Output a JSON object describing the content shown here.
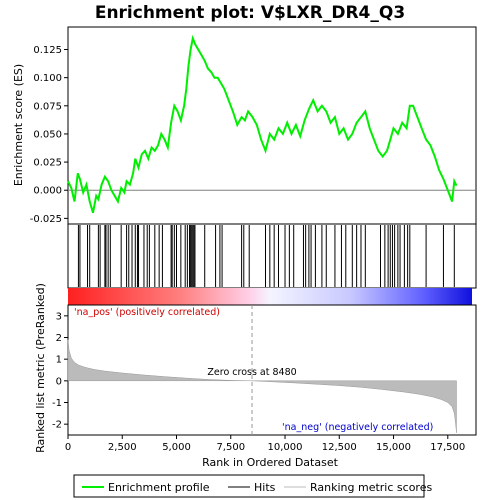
{
  "chart_data": {
    "type": "line",
    "title": "Enrichment plot: V$LXR_DR4_Q3",
    "es_panel": {
      "ylabel": "Enrichment score (ES)",
      "ylim": [
        -0.03,
        0.145
      ],
      "yticks": [
        -0.025,
        0.0,
        0.025,
        0.05,
        0.075,
        0.1,
        0.125
      ],
      "ytick_labels": [
        "-0.025",
        "0.000",
        "0.025",
        "0.050",
        "0.075",
        "0.100",
        "0.125"
      ],
      "series": [
        {
          "name": "Enrichment profile",
          "color": "#00ee00",
          "x": [
            0,
            150,
            300,
            450,
            550,
            700,
            850,
            1000,
            1150,
            1300,
            1400,
            1550,
            1700,
            1850,
            2000,
            2150,
            2300,
            2450,
            2600,
            2700,
            2850,
            3000,
            3100,
            3250,
            3400,
            3550,
            3700,
            3850,
            4000,
            4150,
            4300,
            4450,
            4600,
            4750,
            4900,
            5050,
            5200,
            5350,
            5450,
            5550,
            5650,
            5750,
            5850,
            6000,
            6150,
            6300,
            6450,
            6600,
            6750,
            6900,
            7050,
            7200,
            7400,
            7600,
            7800,
            8000,
            8150,
            8300,
            8500,
            8700,
            8900,
            9100,
            9300,
            9500,
            9700,
            9900,
            10100,
            10300,
            10500,
            10700,
            10900,
            11100,
            11300,
            11500,
            11700,
            11900,
            12100,
            12300,
            12500,
            12700,
            12900,
            13100,
            13300,
            13500,
            13700,
            13900,
            14100,
            14300,
            14500,
            14700,
            14850,
            15000,
            15200,
            15400,
            15600,
            15750,
            15900,
            16100,
            16300,
            16500,
            16700,
            16900,
            17100,
            17300,
            17500,
            17700,
            17800,
            17900
          ],
          "y": [
            0.008,
            0.002,
            -0.01,
            0.015,
            0.01,
            -0.002,
            0.005,
            -0.01,
            -0.02,
            -0.005,
            -0.008,
            0.005,
            0.012,
            0.008,
            0.0,
            -0.005,
            -0.01,
            0.002,
            -0.002,
            0.008,
            0.005,
            0.015,
            0.028,
            0.02,
            0.032,
            0.035,
            0.028,
            0.038,
            0.035,
            0.04,
            0.05,
            0.045,
            0.038,
            0.06,
            0.075,
            0.07,
            0.062,
            0.075,
            0.09,
            0.11,
            0.125,
            0.135,
            0.13,
            0.125,
            0.12,
            0.115,
            0.108,
            0.105,
            0.1,
            0.1,
            0.095,
            0.09,
            0.08,
            0.07,
            0.058,
            0.065,
            0.062,
            0.07,
            0.065,
            0.058,
            0.045,
            0.035,
            0.05,
            0.045,
            0.055,
            0.05,
            0.06,
            0.05,
            0.058,
            0.048,
            0.062,
            0.072,
            0.08,
            0.07,
            0.075,
            0.07,
            0.06,
            0.065,
            0.05,
            0.055,
            0.045,
            0.05,
            0.06,
            0.065,
            0.07,
            0.055,
            0.045,
            0.035,
            0.03,
            0.035,
            0.045,
            0.055,
            0.05,
            0.06,
            0.055,
            0.075,
            0.075,
            0.065,
            0.055,
            0.045,
            0.04,
            0.03,
            0.018,
            0.01,
            0.0,
            -0.01,
            0.008,
            0.004
          ]
        }
      ]
    },
    "hits": [
      0,
      480,
      550,
      900,
      1000,
      1400,
      1480,
      1700,
      1750,
      1850,
      1950,
      2450,
      2700,
      2800,
      2950,
      3100,
      3200,
      3250,
      3500,
      3650,
      3750,
      4000,
      4200,
      4350,
      4750,
      4800,
      4900,
      5000,
      5200,
      5400,
      5500,
      5600,
      5650,
      5700,
      5750,
      5800,
      5850,
      6300,
      6800,
      7000,
      7100,
      8000,
      8100,
      8350,
      9100,
      9300,
      9500,
      9700,
      10000,
      10200,
      10400,
      10850,
      10950,
      11100,
      11200,
      11400,
      11700,
      11900,
      12300,
      12600,
      12800,
      13100,
      13300,
      13500,
      13700,
      14400,
      14600,
      14750,
      14850,
      14950,
      15050,
      15200,
      15300,
      15500,
      15650,
      15750,
      16500,
      17300,
      17800
    ],
    "rank_panel": {
      "ylabel": "Ranked list metric (PreRanked)",
      "xlabel": "Rank in Ordered Dataset",
      "ylim": [
        -2.5,
        3.5
      ],
      "yticks": [
        -2,
        -1,
        0,
        1,
        2,
        3
      ],
      "ytick_labels": [
        "-2",
        "-1",
        "0",
        "1",
        "2",
        "3"
      ],
      "xlim": [
        0,
        18800
      ],
      "xticks": [
        0,
        2500,
        5000,
        7500,
        10000,
        12500,
        15000,
        17500
      ],
      "xtick_labels": [
        "0",
        "2,500",
        "5,000",
        "7,500",
        "10,000",
        "12,500",
        "15,000",
        "17,500"
      ],
      "metric_profile": {
        "x": [
          0,
          50,
          150,
          300,
          500,
          800,
          1200,
          1700,
          2500,
          3500,
          4500,
          5500,
          6500,
          7500,
          8480,
          9500,
          10500,
          11500,
          12500,
          13500,
          14500,
          15500,
          16200,
          16800,
          17200,
          17500,
          17700,
          17800,
          17850,
          17900
        ],
        "y": [
          1.9,
          1.4,
          1.05,
          0.85,
          0.72,
          0.62,
          0.53,
          0.45,
          0.36,
          0.27,
          0.19,
          0.12,
          0.06,
          0.02,
          0.0,
          -0.05,
          -0.1,
          -0.16,
          -0.22,
          -0.3,
          -0.4,
          -0.52,
          -0.62,
          -0.74,
          -0.86,
          -1.0,
          -1.2,
          -1.5,
          -1.9,
          -2.4
        ]
      },
      "zero_cross_label": "Zero cross at 8480",
      "zero_cross": 8480,
      "pos_label": "'na_pos' (positively correlated)",
      "neg_label": "'na_neg' (negatively correlated)",
      "pos_color": "#cc0000",
      "neg_color": "#0000cc"
    },
    "legend": {
      "placement": "bottom",
      "entries": [
        {
          "label": "Enrichment profile",
          "color": "#00ee00"
        },
        {
          "label": "Hits",
          "color": "#000000"
        },
        {
          "label": "Ranking metric scores",
          "color": "#bbbbbb"
        }
      ]
    }
  }
}
